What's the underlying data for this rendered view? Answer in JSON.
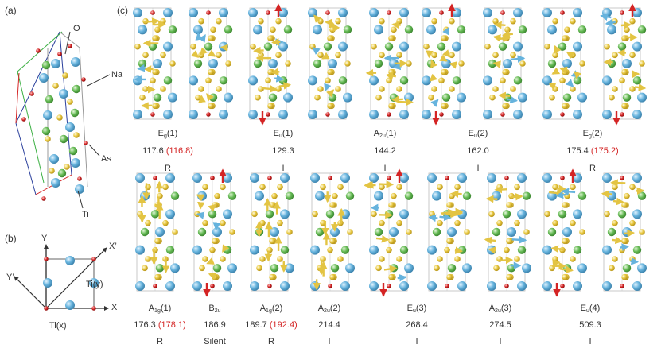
{
  "colors": {
    "ti": "#66b3dd",
    "na": "#66bb55",
    "as": "#e8c840",
    "o": "#d42424",
    "disp": "#e3c443",
    "bond": "#999999",
    "text": "#333333",
    "alt": "#d42424"
  },
  "panel_a": {
    "label": "(a)",
    "atoms": [
      {
        "label": "O"
      },
      {
        "label": "Na"
      },
      {
        "label": "As"
      },
      {
        "label": "Ti"
      }
    ]
  },
  "panel_b": {
    "label": "(b)",
    "axes": {
      "y": "Y",
      "x": "X",
      "y_prime": "Y’",
      "x_prime": "X’"
    },
    "ti_x": "Ti(x)",
    "ti_y": "Ti(y)"
  },
  "panel_c": {
    "label": "(c)",
    "top_modes": [
      {
        "sym": "E",
        "sub": "g",
        "idx": "(1)",
        "freq": "117.6",
        "alt": "(116.8)",
        "activity": "R"
      },
      {
        "sym": "E",
        "sub": "u",
        "idx": "(1)",
        "freq": "129.3",
        "alt": "",
        "activity": "I"
      },
      {
        "sym": "A",
        "sub": "2u",
        "idx": "(1)",
        "freq": "144.2",
        "alt": "",
        "activity": "I"
      },
      {
        "sym": "E",
        "sub": "u",
        "idx": "(2)",
        "freq": "162.0",
        "alt": "",
        "activity": "I"
      },
      {
        "sym": "E",
        "sub": "g",
        "idx": "(2)",
        "freq": "175.4",
        "alt": "(175.2)",
        "activity": "R"
      }
    ],
    "bottom_modes": [
      {
        "sym": "A",
        "sub": "1g",
        "idx": "(1)",
        "freq": "176.3",
        "alt": "(178.1)",
        "activity": "R"
      },
      {
        "sym": "B",
        "sub": "2u",
        "idx": "",
        "freq": "186.9",
        "alt": "",
        "activity": "Silent"
      },
      {
        "sym": "A",
        "sub": "1g",
        "idx": "(2)",
        "freq": "189.7",
        "alt": "(192.4)",
        "activity": "R"
      },
      {
        "sym": "A",
        "sub": "2u",
        "idx": "(2)",
        "freq": "214.4",
        "alt": "",
        "activity": "I"
      },
      {
        "sym": "E",
        "sub": "u",
        "idx": "(3)",
        "freq": "268.4",
        "alt": "",
        "activity": "I"
      },
      {
        "sym": "A",
        "sub": "2u",
        "idx": "(3)",
        "freq": "274.5",
        "alt": "",
        "activity": "I"
      },
      {
        "sym": "E",
        "sub": "u",
        "idx": "(4)",
        "freq": "509.3",
        "alt": "",
        "activity": "I"
      }
    ]
  }
}
